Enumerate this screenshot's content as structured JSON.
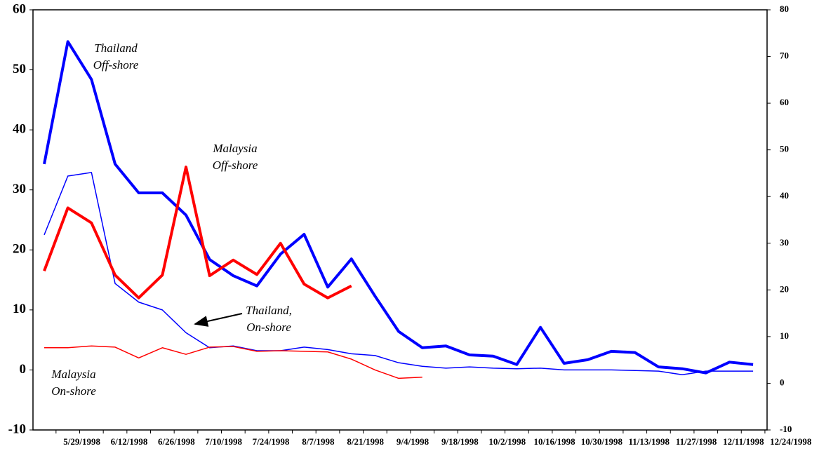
{
  "chart_data": {
    "type": "line",
    "categories": [
      null,
      "5/29/1998",
      null,
      "6/12/1998",
      null,
      "6/26/1998",
      null,
      "7/10/1998",
      null,
      "7/24/1998",
      null,
      "8/7/1998",
      null,
      "8/21/1998",
      null,
      "9/4/1998",
      null,
      "9/18/1998",
      null,
      "10/2/1998",
      null,
      "10/16/1998",
      null,
      "10/30/1998",
      null,
      "11/13/1998",
      null,
      "11/27/1998",
      null,
      "12/11/1998",
      null,
      "12/24/1998"
    ],
    "series": [
      {
        "color": "#0000ff",
        "linewidth": 4,
        "values": [
          34.3,
          54.7,
          48.4,
          34.3,
          29.5,
          29.5,
          25.8,
          18.4,
          15.7,
          14.0,
          19.3,
          22.6,
          13.8,
          18.5,
          12.3,
          6.4,
          3.7,
          4.0,
          2.5,
          2.3,
          0.9,
          7.1,
          1.1,
          1.7,
          3.1,
          2.9,
          0.5,
          0.2,
          -0.5,
          1.3,
          0.9,
          null
        ]
      },
      {
        "color": "#0000ff",
        "linewidth": 1.5,
        "values": [
          22.5,
          32.3,
          32.9,
          14.4,
          11.3,
          10.0,
          6.2,
          3.7,
          4.0,
          3.2,
          3.2,
          3.8,
          3.4,
          2.7,
          2.4,
          1.2,
          0.6,
          0.3,
          0.5,
          0.3,
          0.2,
          0.3,
          0.0,
          0.0,
          0.0,
          -0.1,
          -0.2,
          -0.8,
          -0.2,
          -0.2,
          -0.2,
          null
        ]
      },
      {
        "color": "#ff0000",
        "linewidth": 4,
        "values": [
          16.5,
          27.0,
          24.5,
          15.8,
          12.0,
          15.8,
          33.8,
          15.7,
          18.3,
          15.9,
          21.1,
          14.3,
          12.0,
          14.0,
          null,
          null,
          null,
          null,
          null,
          null,
          null,
          null,
          null,
          null,
          null,
          null,
          null,
          null,
          null,
          null,
          null,
          null
        ]
      },
      {
        "color": "#ff0000",
        "linewidth": 1.5,
        "values": [
          3.7,
          3.7,
          4.0,
          3.8,
          2.0,
          3.7,
          2.6,
          3.8,
          3.9,
          3.1,
          3.2,
          3.1,
          3.0,
          1.8,
          0.0,
          -1.4,
          -1.2,
          null,
          null,
          null,
          null,
          null,
          null,
          null,
          null,
          null,
          null,
          null,
          null,
          null,
          null,
          null
        ]
      }
    ],
    "ylim": [
      -10,
      60
    ],
    "yticks": [
      -10,
      0,
      10,
      20,
      30,
      40,
      50,
      60
    ],
    "y2lim": [
      -10,
      80
    ],
    "y2ticks": [
      -10,
      0,
      10,
      20,
      30,
      40,
      50,
      60,
      70,
      80
    ],
    "annotations": [
      {
        "lines": [
          "Thailand",
          "Off-shore"
        ]
      },
      {
        "lines": [
          "Malaysia",
          "Off-shore"
        ]
      },
      {
        "lines": [
          "Thailand,",
          "On-shore"
        ]
      },
      {
        "lines": [
          "Malaysia",
          "On-shore"
        ]
      }
    ]
  }
}
